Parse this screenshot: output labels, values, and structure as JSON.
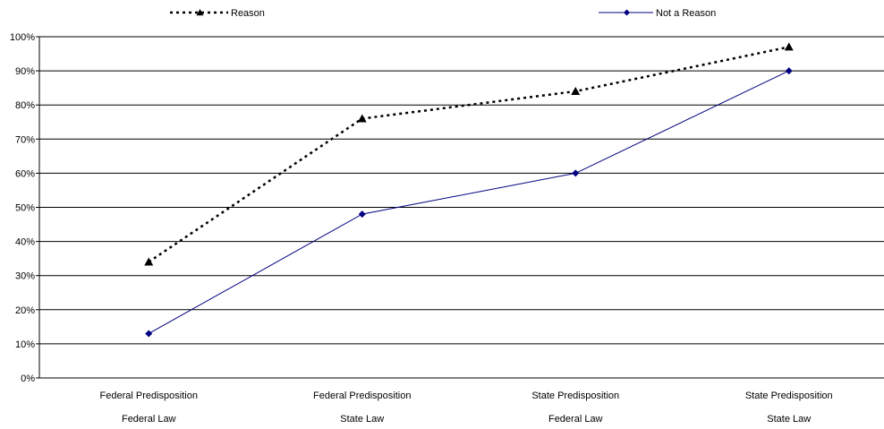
{
  "chart_data": {
    "type": "line",
    "categories": [
      [
        "Federal Predisposition",
        "Federal Law"
      ],
      [
        "Federal Predisposition",
        "State Law"
      ],
      [
        "State Predisposition",
        "Federal Law"
      ],
      [
        "State Predisposition",
        "State Law"
      ]
    ],
    "series": [
      {
        "name": "Reason",
        "values": [
          34,
          76,
          84,
          97
        ],
        "color": "#000000",
        "line_style": "dotted",
        "marker": "triangle"
      },
      {
        "name": "Not a Reason",
        "values": [
          13,
          48,
          60,
          90
        ],
        "color": "#000080",
        "line_style": "solid",
        "marker": "diamond"
      }
    ],
    "yticks": [
      "0%",
      "10%",
      "20%",
      "30%",
      "40%",
      "50%",
      "60%",
      "70%",
      "80%",
      "90%",
      "100%"
    ],
    "ylim": [
      0,
      100
    ],
    "grid": true,
    "legend": "top"
  }
}
